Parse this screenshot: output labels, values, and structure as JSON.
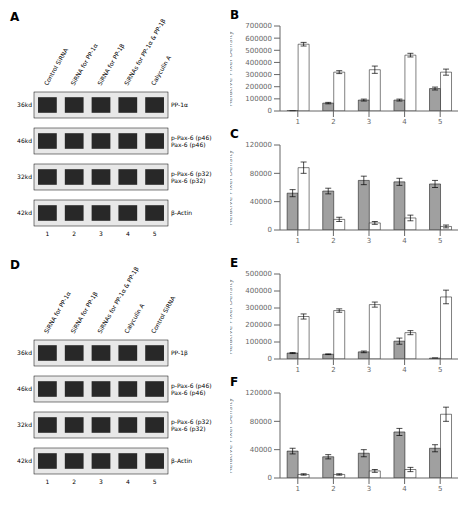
{
  "chart_data": [
    {
      "type": "blot",
      "title": "A",
      "categories": [
        "Control SiRNA",
        "SiRNA for PP-1α",
        "SiRNA for PP-1β",
        "SiRNAs for PP-1α & PP-1β",
        "Calyculin A"
      ],
      "lanes": [
        1,
        2,
        3,
        4,
        5
      ],
      "row_labels": [
        "PP-1α",
        "p-Pax-6 (p46)\nPax-6 (p46)",
        "p-Pax-6 (p32)\nPax-6 (p32)",
        "β-Actin"
      ],
      "kd_labels": [
        "36kd",
        "46kd",
        "32kd",
        "42kd"
      ]
    },
    {
      "type": "bar",
      "title": "B",
      "ylabel": "Relative Pixel Density",
      "categories": [
        1,
        2,
        3,
        4,
        5
      ],
      "ylim": [
        0,
        700000
      ],
      "yticks": [
        0,
        100000,
        200000,
        300000,
        400000,
        500000,
        600000,
        700000
      ],
      "series": [
        {
          "color": "#a0a0a0",
          "values": [
            3000,
            65000,
            90000,
            90000,
            185000
          ],
          "errors": [
            1000,
            6000,
            8000,
            8000,
            12000
          ]
        },
        {
          "color": "#ffffff",
          "values": [
            550000,
            320000,
            340000,
            460000,
            320000
          ],
          "errors": [
            15000,
            12000,
            30000,
            15000,
            25000
          ]
        }
      ]
    },
    {
      "type": "bar",
      "title": "C",
      "ylabel": "Relative Pixel Density",
      "categories": [
        1,
        2,
        3,
        4,
        5
      ],
      "ylim": [
        0,
        120000
      ],
      "yticks": [
        0,
        40000,
        80000,
        120000
      ],
      "series": [
        {
          "color": "#a0a0a0",
          "values": [
            52000,
            55000,
            70000,
            68000,
            65000
          ],
          "errors": [
            5000,
            4000,
            6000,
            5000,
            5000
          ]
        },
        {
          "color": "#ffffff",
          "values": [
            88000,
            15000,
            10000,
            17000,
            5000
          ],
          "errors": [
            8000,
            3000,
            2000,
            4000,
            2000
          ]
        }
      ]
    },
    {
      "type": "blot",
      "title": "D",
      "categories": [
        "SiRNA for PP-1α",
        "SiRNA for PP-1β",
        "SiRNAs for PP-1α & PP-1β",
        "Calyculin A",
        "Control SiRNA"
      ],
      "lanes": [
        1,
        2,
        3,
        4,
        5
      ],
      "row_labels": [
        "PP-1β",
        "p-Pax-6 (p46)\nPax-6 (p46)",
        "p-Pax-6 (p32)\nPax-6 (p32)",
        "β-Actin"
      ],
      "kd_labels": [
        "36kd",
        "46kd",
        "32kd",
        "42kd"
      ]
    },
    {
      "type": "bar",
      "title": "E",
      "ylabel": "Relative Pixel Density",
      "categories": [
        1,
        2,
        3,
        4,
        5
      ],
      "ylim": [
        0,
        500000
      ],
      "yticks": [
        0,
        100000,
        200000,
        300000,
        400000,
        500000
      ],
      "series": [
        {
          "color": "#a0a0a0",
          "values": [
            35000,
            28000,
            42000,
            105000,
            5000
          ],
          "errors": [
            3000,
            2000,
            5000,
            18000,
            1000
          ]
        },
        {
          "color": "#ffffff",
          "values": [
            250000,
            285000,
            320000,
            155000,
            365000
          ],
          "errors": [
            15000,
            10000,
            15000,
            12000,
            40000
          ]
        }
      ]
    },
    {
      "type": "bar",
      "title": "F",
      "ylabel": "Relative Pixel Density",
      "categories": [
        1,
        2,
        3,
        4,
        5
      ],
      "ylim": [
        0,
        120000
      ],
      "yticks": [
        0,
        40000,
        80000,
        120000
      ],
      "series": [
        {
          "color": "#a0a0a0",
          "values": [
            38000,
            30000,
            35000,
            65000,
            42000
          ],
          "errors": [
            4000,
            3000,
            5000,
            5000,
            5000
          ]
        },
        {
          "color": "#ffffff",
          "values": [
            5000,
            5000,
            10000,
            12000,
            90000
          ],
          "errors": [
            1000,
            1000,
            2000,
            3000,
            10000
          ]
        }
      ]
    }
  ]
}
